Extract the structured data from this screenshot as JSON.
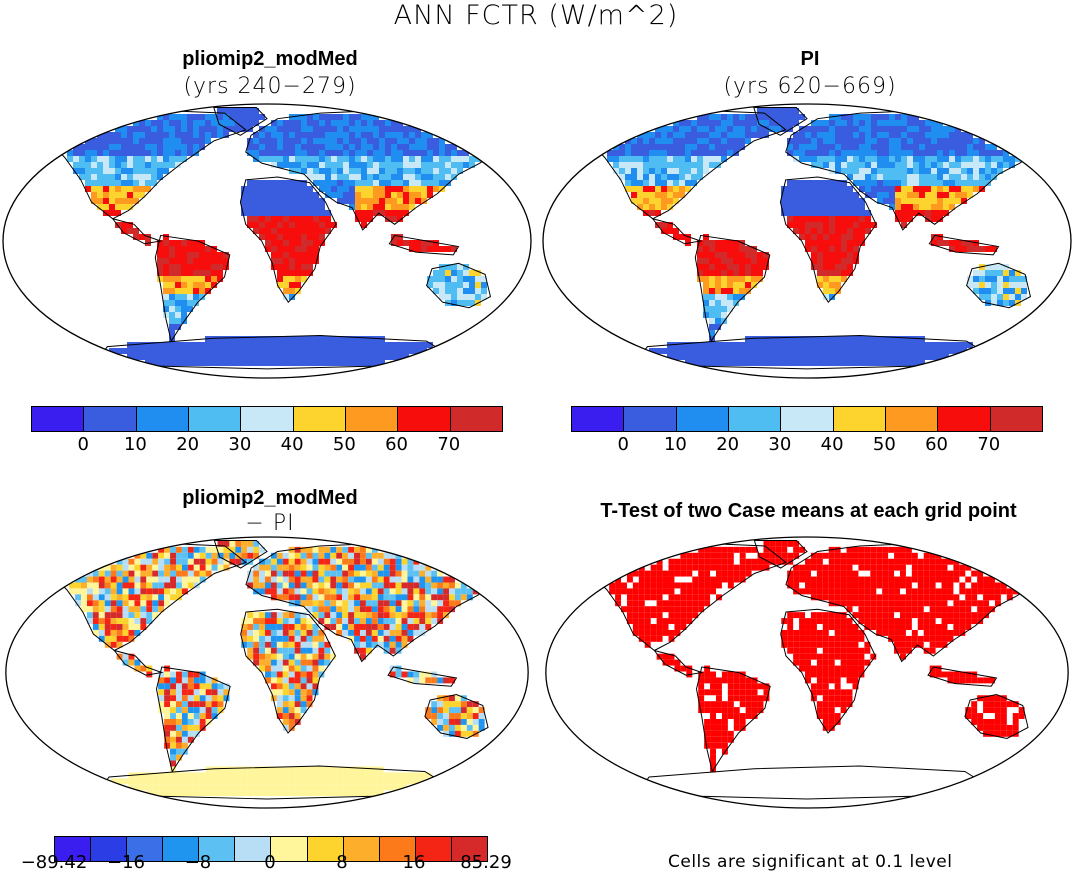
{
  "title": "ANN FCTR (W/m^2)",
  "panels": {
    "top_left": {
      "title": "pliomip2_modMed",
      "subtitle": "(yrs 240−279)"
    },
    "top_right": {
      "title": "PI",
      "subtitle": "(yrs 620−669)"
    },
    "bottom_left": {
      "title": "pliomip2_modMed",
      "subtitle": "− PI"
    },
    "bottom_right": {
      "title": "T-Test of two Case means at each grid point",
      "note": "Cells are significant at 0.1 level"
    }
  },
  "colorbars": {
    "absolute": {
      "colors": [
        "#3a1ef0",
        "#3a5de0",
        "#1f8ef0",
        "#4fbdf2",
        "#c8e8f8",
        "#fdd32e",
        "#fd9a1f",
        "#f80d0d",
        "#d12a2a"
      ],
      "labels": [
        "0",
        "10",
        "20",
        "30",
        "40",
        "50",
        "60",
        "70"
      ]
    },
    "difference": {
      "colors": [
        "#3a1ef0",
        "#2b3ee6",
        "#3a6fe8",
        "#1f95f0",
        "#5cc0f2",
        "#b7def5",
        "#fff59a",
        "#fdd32e",
        "#fdae2a",
        "#fd7a1a",
        "#f52515",
        "#d62a2a"
      ],
      "labels": [
        "−89.42",
        "−16",
        "−8",
        "0",
        "8",
        "16",
        "85.29"
      ]
    },
    "ttest_color": "#ff0000"
  },
  "icons": {
    "map": "world-map-robinson"
  }
}
